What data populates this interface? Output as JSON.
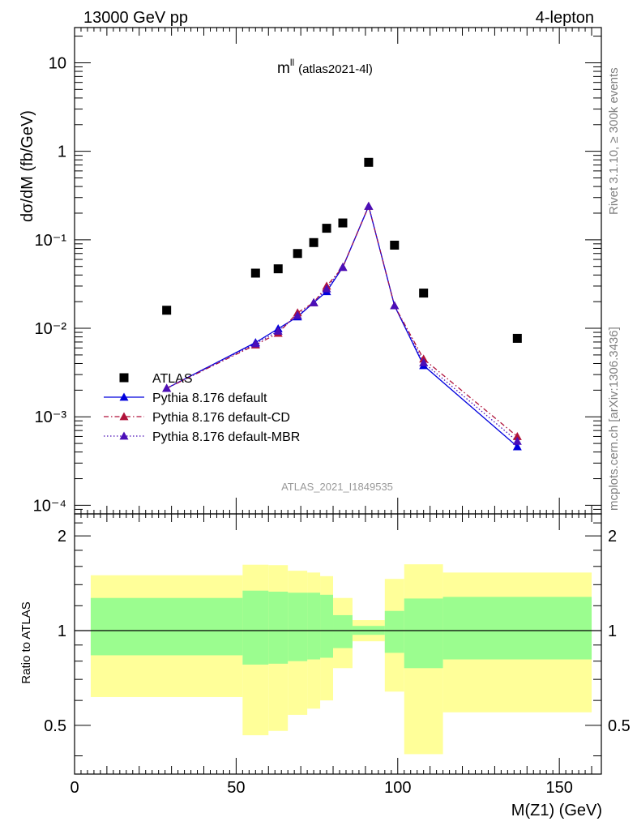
{
  "header": {
    "energy": "13000 GeV pp",
    "process": "4-lepton"
  },
  "side_labels": {
    "rivet": "Rivet 3.1.10, ≥ 300k events",
    "mcplots": "mcplots.cern.ch [arXiv:1306.3436]"
  },
  "chart_data": [
    {
      "type": "scatter",
      "title_main": "m",
      "title_sup": "ll",
      "title_suffix": "(atlas2021-4l)",
      "watermark": "ATLAS_2021_I1849535",
      "xlabel": "M(Z1) (GeV)",
      "ylabel": "dσ/dM (fb/GeV)",
      "xlim": [
        0,
        163
      ],
      "ylim": [
        8e-05,
        25
      ],
      "yscale": "log",
      "x_ticks": [
        "0",
        "50",
        "100",
        "150"
      ],
      "y_ticks": [
        "10⁻⁴",
        "10⁻³",
        "10⁻²",
        "10⁻¹",
        "1",
        "10"
      ],
      "legend_position": "bottom-left",
      "series": [
        {
          "name": "ATLAS",
          "color": "#000000",
          "marker": "square",
          "x": [
            28.5,
            56,
            63,
            69,
            74,
            78,
            83,
            91,
            99,
            108,
            137
          ],
          "y": [
            0.016,
            0.042,
            0.047,
            0.07,
            0.093,
            0.135,
            0.155,
            0.75,
            0.087,
            0.025,
            0.0077
          ]
        },
        {
          "name": "Pythia 8.176 default",
          "color": "#0000dd",
          "marker": "triangle",
          "line": "solid",
          "x": [
            28.5,
            56,
            63,
            69,
            74,
            78,
            83,
            91,
            99,
            108,
            137
          ],
          "y": [
            0.0021,
            0.0069,
            0.0099,
            0.0135,
            0.0195,
            0.026,
            0.049,
            0.24,
            0.018,
            0.0038,
            0.00046
          ]
        },
        {
          "name": "Pythia 8.176 default-CD",
          "color": "#b0123a",
          "marker": "triangle",
          "line": "dashdot",
          "x": [
            28.5,
            56,
            63,
            69,
            74,
            78,
            83,
            91,
            99,
            108,
            137
          ],
          "y": [
            0.0021,
            0.0065,
            0.0088,
            0.015,
            0.0195,
            0.03,
            0.049,
            0.24,
            0.018,
            0.0045,
            0.0006
          ]
        },
        {
          "name": "Pythia 8.176 default-MBR",
          "color": "#4b0fb8",
          "marker": "triangle",
          "line": "dotted",
          "x": [
            28.5,
            56,
            63,
            69,
            74,
            78,
            83,
            91,
            99,
            108,
            137
          ],
          "y": [
            0.0021,
            0.0067,
            0.0093,
            0.014,
            0.0195,
            0.028,
            0.049,
            0.24,
            0.018,
            0.0041,
            0.00053
          ]
        }
      ]
    },
    {
      "type": "area",
      "ylabel": "Ratio to ATLAS",
      "xlim": [
        0,
        163
      ],
      "ylim": [
        0.35,
        2.35
      ],
      "y_ticks_labels": [
        "0.5",
        "1",
        "2"
      ],
      "y_ticks_values": [
        0.5,
        1,
        2
      ],
      "reference_line": 1,
      "bins": [
        {
          "lo": 5,
          "hi": 52,
          "stat_lo": 0.835,
          "stat_hi": 1.27,
          "tot_lo": 0.615,
          "tot_hi": 1.5
        },
        {
          "lo": 52,
          "hi": 60,
          "stat_lo": 0.78,
          "stat_hi": 1.34,
          "tot_lo": 0.465,
          "tot_hi": 1.62
        },
        {
          "lo": 60,
          "hi": 66,
          "stat_lo": 0.785,
          "stat_hi": 1.33,
          "tot_lo": 0.48,
          "tot_hi": 1.615
        },
        {
          "lo": 66,
          "hi": 72,
          "stat_lo": 0.8,
          "stat_hi": 1.32,
          "tot_lo": 0.54,
          "tot_hi": 1.55
        },
        {
          "lo": 72,
          "hi": 76,
          "stat_lo": 0.81,
          "stat_hi": 1.32,
          "tot_lo": 0.565,
          "tot_hi": 1.53
        },
        {
          "lo": 76,
          "hi": 80,
          "stat_lo": 0.82,
          "stat_hi": 1.3,
          "tot_lo": 0.6,
          "tot_hi": 1.49
        },
        {
          "lo": 80,
          "hi": 86,
          "stat_lo": 0.88,
          "stat_hi": 1.12,
          "tot_lo": 0.76,
          "tot_hi": 1.27
        },
        {
          "lo": 86,
          "hi": 96,
          "stat_lo": 0.97,
          "stat_hi": 1.035,
          "tot_lo": 0.925,
          "tot_hi": 1.08
        },
        {
          "lo": 96,
          "hi": 102,
          "stat_lo": 0.85,
          "stat_hi": 1.155,
          "tot_lo": 0.64,
          "tot_hi": 1.46
        },
        {
          "lo": 102,
          "hi": 114,
          "stat_lo": 0.76,
          "stat_hi": 1.265,
          "tot_lo": 0.405,
          "tot_hi": 1.625
        },
        {
          "lo": 114,
          "hi": 160,
          "stat_lo": 0.81,
          "stat_hi": 1.28,
          "tot_lo": 0.55,
          "tot_hi": 1.53
        }
      ],
      "band_colors": {
        "stat": "#9bfd8f",
        "total": "#ffff99"
      }
    }
  ]
}
